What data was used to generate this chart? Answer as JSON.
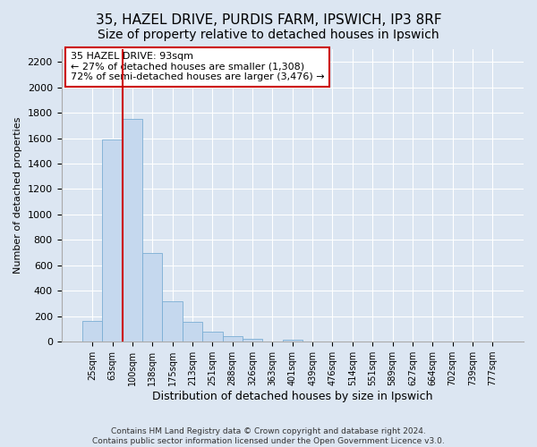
{
  "title": "35, HAZEL DRIVE, PURDIS FARM, IPSWICH, IP3 8RF",
  "subtitle": "Size of property relative to detached houses in Ipswich",
  "xlabel": "Distribution of detached houses by size in Ipswich",
  "ylabel": "Number of detached properties",
  "bin_labels": [
    "25sqm",
    "63sqm",
    "100sqm",
    "138sqm",
    "175sqm",
    "213sqm",
    "251sqm",
    "288sqm",
    "326sqm",
    "363sqm",
    "401sqm",
    "439sqm",
    "476sqm",
    "514sqm",
    "551sqm",
    "589sqm",
    "627sqm",
    "664sqm",
    "702sqm",
    "739sqm",
    "777sqm"
  ],
  "bar_heights": [
    160,
    1590,
    1750,
    700,
    315,
    155,
    80,
    45,
    20,
    0,
    15,
    0,
    0,
    0,
    0,
    0,
    0,
    0,
    0,
    0,
    0
  ],
  "bar_color": "#c5d8ee",
  "bar_edge_color": "#7aaed4",
  "vline_color": "#cc0000",
  "vline_position": 1.5,
  "annotation_text": "35 HAZEL DRIVE: 93sqm\n← 27% of detached houses are smaller (1,308)\n72% of semi-detached houses are larger (3,476) →",
  "annotation_box_color": "#ffffff",
  "annotation_box_edgecolor": "#cc0000",
  "ylim": [
    0,
    2300
  ],
  "yticks": [
    0,
    200,
    400,
    600,
    800,
    1000,
    1200,
    1400,
    1600,
    1800,
    2000,
    2200
  ],
  "background_color": "#dce6f2",
  "plot_background_color": "#dce6f2",
  "grid_color": "#ffffff",
  "footer_line1": "Contains HM Land Registry data © Crown copyright and database right 2024.",
  "footer_line2": "Contains public sector information licensed under the Open Government Licence v3.0.",
  "title_fontsize": 11,
  "subtitle_fontsize": 10
}
